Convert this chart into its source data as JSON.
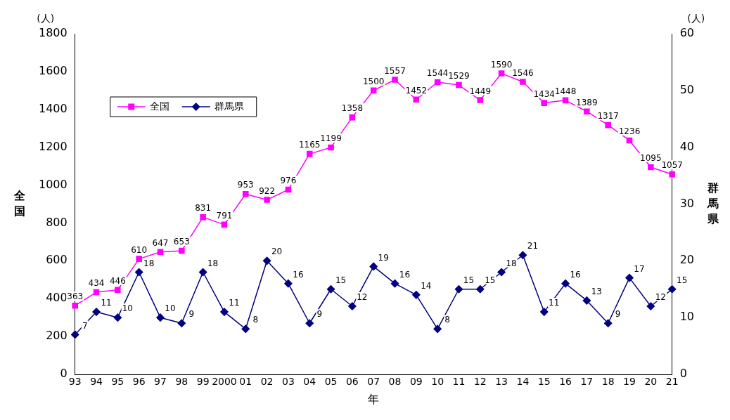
{
  "chart_data": {
    "type": "line",
    "xlabel": "年",
    "ylabel": "全国",
    "y2label": "群馬県",
    "annotations": [
      "(人)",
      "(人)"
    ],
    "categories": [
      "93",
      "94",
      "95",
      "96",
      "97",
      "98",
      "99",
      "2000",
      "01",
      "02",
      "03",
      "04",
      "05",
      "06",
      "07",
      "08",
      "09",
      "10",
      "11",
      "12",
      "13",
      "14",
      "15",
      "16",
      "17",
      "18",
      "19",
      "20",
      "21"
    ],
    "series": [
      {
        "name": "全国",
        "color": "#ff00ff",
        "marker": "square",
        "values": [
          363,
          434,
          446,
          610,
          647,
          653,
          831,
          791,
          953,
          922,
          976,
          1165,
          1199,
          1358,
          1500,
          1557,
          1452,
          1544,
          1529,
          1449,
          1590,
          1546,
          1434,
          1448,
          1389,
          1317,
          1236,
          1095,
          1057
        ]
      },
      {
        "name": "群馬県",
        "color": "#000080",
        "marker": "diamond",
        "axis": "y2",
        "values": [
          7,
          11,
          10,
          18,
          10,
          9,
          18,
          11,
          8,
          20,
          16,
          9,
          15,
          12,
          19,
          16,
          14,
          8,
          15,
          15,
          18,
          21,
          11,
          16,
          13,
          9,
          17,
          12,
          15
        ]
      }
    ],
    "ylim": [
      0,
      1800
    ],
    "yticks": [
      0,
      200,
      400,
      600,
      800,
      1000,
      1200,
      1400,
      1600,
      1800
    ],
    "y2lim": [
      0,
      60
    ],
    "y2ticks": [
      0,
      10,
      20,
      30,
      40,
      50,
      60
    ],
    "grid": false,
    "legend": "top left",
    "data_labels": true,
    "line_style": "solid"
  }
}
